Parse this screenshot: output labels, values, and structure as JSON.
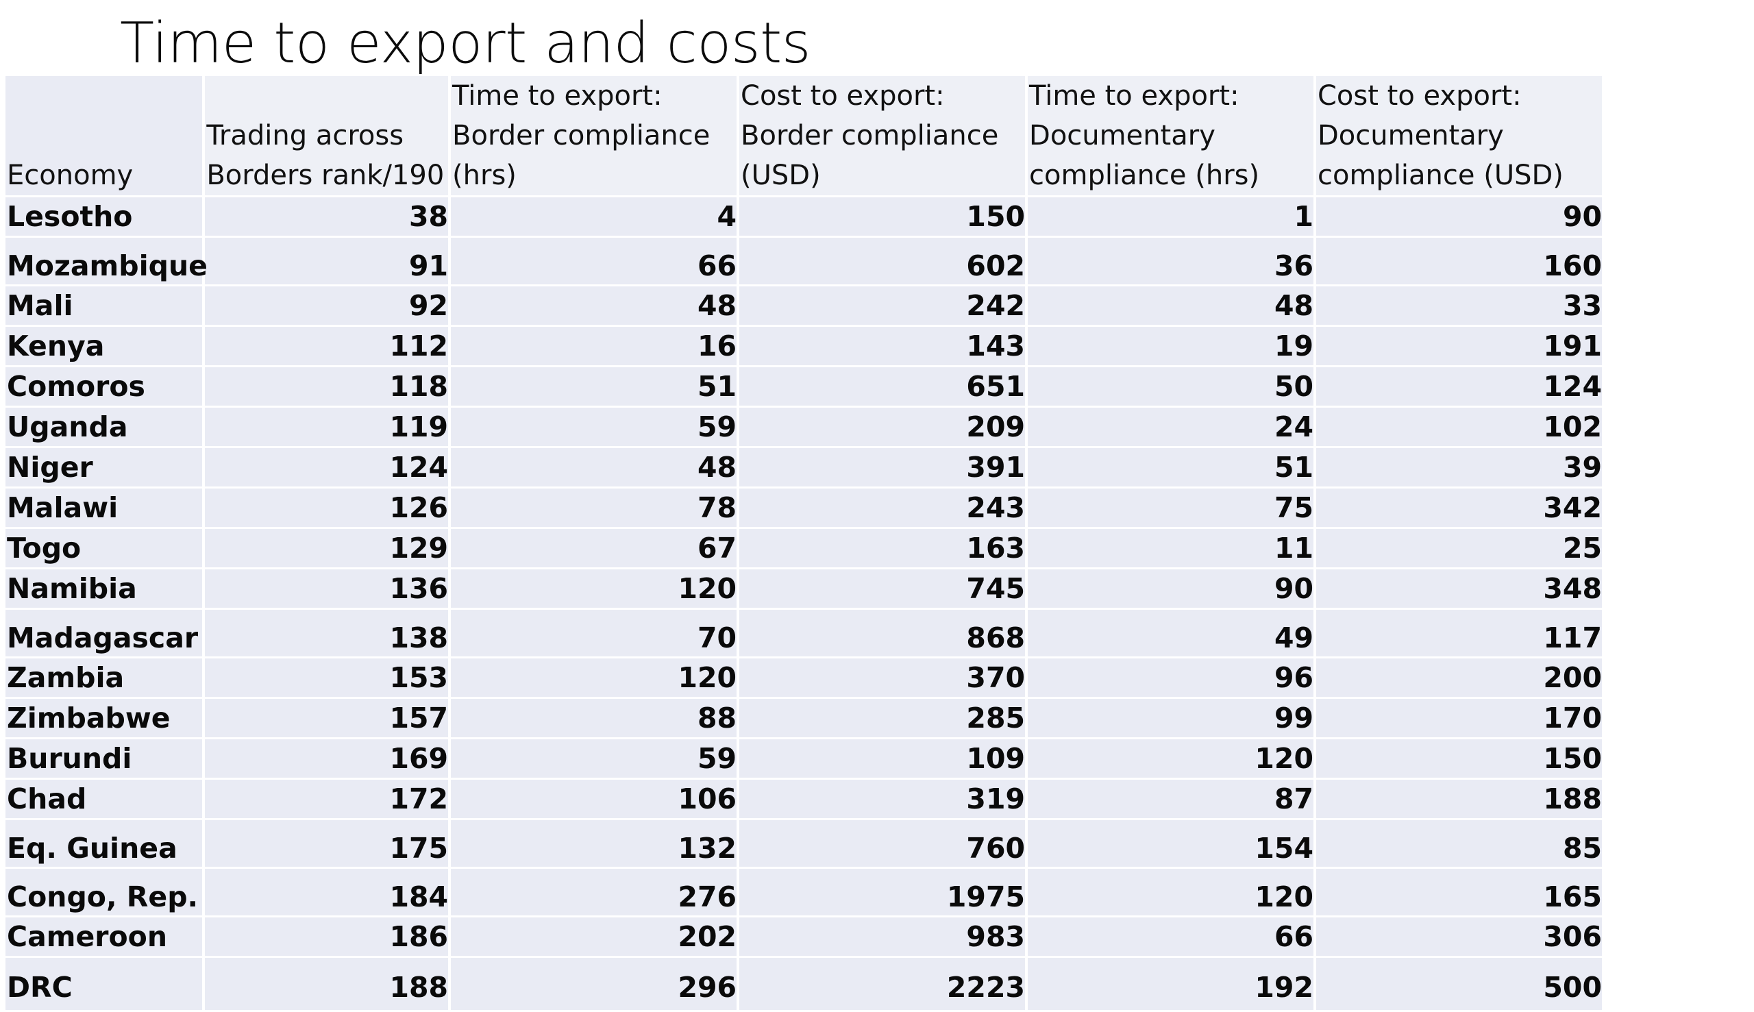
{
  "title": "Time to export and costs",
  "table": {
    "headers": [
      "Economy",
      "Trading across Borders rank/190",
      "Time to export: Border compliance (hrs)",
      "Cost to export: Border compliance (USD)",
      "Time to export: Documentary compliance (hrs)",
      "Cost to export: Documentary compliance (USD)"
    ],
    "rows": [
      {
        "economy": "Lesotho",
        "rank": "38",
        "border_time": "4",
        "border_cost": "150",
        "doc_time": "1",
        "doc_cost": "90"
      },
      {
        "economy": "Mozambique",
        "rank": "91",
        "border_time": "66",
        "border_cost": "602",
        "doc_time": "36",
        "doc_cost": "160"
      },
      {
        "economy": "Mali",
        "rank": "92",
        "border_time": "48",
        "border_cost": "242",
        "doc_time": "48",
        "doc_cost": "33"
      },
      {
        "economy": "Kenya",
        "rank": "112",
        "border_time": "16",
        "border_cost": "143",
        "doc_time": "19",
        "doc_cost": "191"
      },
      {
        "economy": "Comoros",
        "rank": "118",
        "border_time": "51",
        "border_cost": "651",
        "doc_time": "50",
        "doc_cost": "124"
      },
      {
        "economy": "Uganda",
        "rank": "119",
        "border_time": "59",
        "border_cost": "209",
        "doc_time": "24",
        "doc_cost": "102"
      },
      {
        "economy": "Niger",
        "rank": "124",
        "border_time": "48",
        "border_cost": "391",
        "doc_time": "51",
        "doc_cost": "39"
      },
      {
        "economy": "Malawi",
        "rank": "126",
        "border_time": "78",
        "border_cost": "243",
        "doc_time": "75",
        "doc_cost": "342"
      },
      {
        "economy": "Togo",
        "rank": "129",
        "border_time": "67",
        "border_cost": "163",
        "doc_time": "11",
        "doc_cost": "25"
      },
      {
        "economy": "Namibia",
        "rank": "136",
        "border_time": "120",
        "border_cost": "745",
        "doc_time": "90",
        "doc_cost": "348"
      },
      {
        "economy": "Madagascar",
        "rank": "138",
        "border_time": "70",
        "border_cost": "868",
        "doc_time": "49",
        "doc_cost": "117"
      },
      {
        "economy": "Zambia",
        "rank": "153",
        "border_time": "120",
        "border_cost": "370",
        "doc_time": "96",
        "doc_cost": "200"
      },
      {
        "economy": "Zimbabwe",
        "rank": "157",
        "border_time": "88",
        "border_cost": "285",
        "doc_time": "99",
        "doc_cost": "170"
      },
      {
        "economy": "Burundi",
        "rank": "169",
        "border_time": "59",
        "border_cost": "109",
        "doc_time": "120",
        "doc_cost": "150"
      },
      {
        "economy": "Chad",
        "rank": "172",
        "border_time": "106",
        "border_cost": "319",
        "doc_time": "87",
        "doc_cost": "188"
      },
      {
        "economy": "Eq. Guinea",
        "rank": "175",
        "border_time": "132",
        "border_cost": "760",
        "doc_time": "154",
        "doc_cost": "85"
      },
      {
        "economy": "Congo, Rep.",
        "rank": "184",
        "border_time": "276",
        "border_cost": "1975",
        "doc_time": "120",
        "doc_cost": "165"
      },
      {
        "economy": "Cameroon",
        "rank": "186",
        "border_time": "202",
        "border_cost": "983",
        "doc_time": "66",
        "doc_cost": "306"
      },
      {
        "economy": "DRC",
        "rank": "188",
        "border_time": "296",
        "border_cost": "2223",
        "doc_time": "192",
        "doc_cost": "500"
      }
    ]
  }
}
